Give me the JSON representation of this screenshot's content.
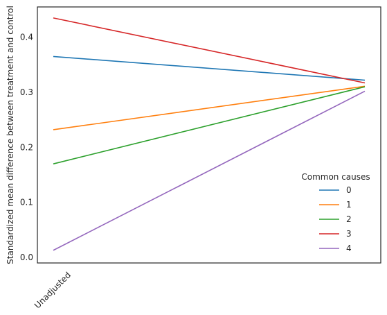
{
  "chart_data": {
    "type": "line",
    "ylabel": "Standardized mean difference between treatment and control",
    "x_tick_labels": [
      "Unadjusted"
    ],
    "ylim": [
      -0.01,
      0.455
    ],
    "yticks": [
      0.0,
      0.1,
      0.2,
      0.3,
      0.4
    ],
    "ytick_labels": [
      "0.0",
      "0.1",
      "0.2",
      "0.3",
      "0.4"
    ],
    "grid": false,
    "legend": {
      "title": "Common causes",
      "position": "lower-right"
    },
    "series": [
      {
        "name": "0",
        "color": "#1f77b4",
        "values": [
          0.365,
          0.322
        ]
      },
      {
        "name": "1",
        "color": "#ff7f0e",
        "values": [
          0.232,
          0.311
        ]
      },
      {
        "name": "2",
        "color": "#2ca02c",
        "values": [
          0.17,
          0.31
        ]
      },
      {
        "name": "3",
        "color": "#d62728",
        "values": [
          0.435,
          0.317
        ]
      },
      {
        "name": "4",
        "color": "#9467bd",
        "values": [
          0.013,
          0.302
        ]
      }
    ]
  }
}
